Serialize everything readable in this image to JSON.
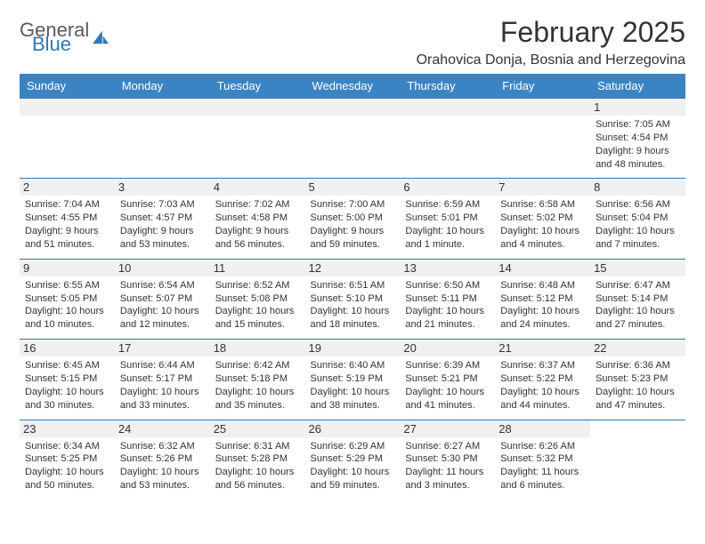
{
  "logo": {
    "text1": "General",
    "text2": "Blue"
  },
  "title": "February 2025",
  "location": "Orahovica Donja, Bosnia and Herzegovina",
  "colors": {
    "header_bg": "#3b84c4",
    "header_text": "#ffffff",
    "border": "#2f78b5",
    "daynum_bg": "#f0f0f0",
    "text": "#333333",
    "logo_gray": "#5a5a5a",
    "logo_blue": "#2f78b5",
    "page_bg": "#ffffff"
  },
  "fonts": {
    "title_size": 32,
    "location_size": 16,
    "dayname_size": 13,
    "daynum_size": 13,
    "body_size": 11
  },
  "dayNames": [
    "Sunday",
    "Monday",
    "Tuesday",
    "Wednesday",
    "Thursday",
    "Friday",
    "Saturday"
  ],
  "weeks": [
    [
      null,
      null,
      null,
      null,
      null,
      null,
      {
        "n": "1",
        "sr": "Sunrise: 7:05 AM",
        "ss": "Sunset: 4:54 PM",
        "d1": "Daylight: 9 hours",
        "d2": "and 48 minutes."
      }
    ],
    [
      {
        "n": "2",
        "sr": "Sunrise: 7:04 AM",
        "ss": "Sunset: 4:55 PM",
        "d1": "Daylight: 9 hours",
        "d2": "and 51 minutes."
      },
      {
        "n": "3",
        "sr": "Sunrise: 7:03 AM",
        "ss": "Sunset: 4:57 PM",
        "d1": "Daylight: 9 hours",
        "d2": "and 53 minutes."
      },
      {
        "n": "4",
        "sr": "Sunrise: 7:02 AM",
        "ss": "Sunset: 4:58 PM",
        "d1": "Daylight: 9 hours",
        "d2": "and 56 minutes."
      },
      {
        "n": "5",
        "sr": "Sunrise: 7:00 AM",
        "ss": "Sunset: 5:00 PM",
        "d1": "Daylight: 9 hours",
        "d2": "and 59 minutes."
      },
      {
        "n": "6",
        "sr": "Sunrise: 6:59 AM",
        "ss": "Sunset: 5:01 PM",
        "d1": "Daylight: 10 hours",
        "d2": "and 1 minute."
      },
      {
        "n": "7",
        "sr": "Sunrise: 6:58 AM",
        "ss": "Sunset: 5:02 PM",
        "d1": "Daylight: 10 hours",
        "d2": "and 4 minutes."
      },
      {
        "n": "8",
        "sr": "Sunrise: 6:56 AM",
        "ss": "Sunset: 5:04 PM",
        "d1": "Daylight: 10 hours",
        "d2": "and 7 minutes."
      }
    ],
    [
      {
        "n": "9",
        "sr": "Sunrise: 6:55 AM",
        "ss": "Sunset: 5:05 PM",
        "d1": "Daylight: 10 hours",
        "d2": "and 10 minutes."
      },
      {
        "n": "10",
        "sr": "Sunrise: 6:54 AM",
        "ss": "Sunset: 5:07 PM",
        "d1": "Daylight: 10 hours",
        "d2": "and 12 minutes."
      },
      {
        "n": "11",
        "sr": "Sunrise: 6:52 AM",
        "ss": "Sunset: 5:08 PM",
        "d1": "Daylight: 10 hours",
        "d2": "and 15 minutes."
      },
      {
        "n": "12",
        "sr": "Sunrise: 6:51 AM",
        "ss": "Sunset: 5:10 PM",
        "d1": "Daylight: 10 hours",
        "d2": "and 18 minutes."
      },
      {
        "n": "13",
        "sr": "Sunrise: 6:50 AM",
        "ss": "Sunset: 5:11 PM",
        "d1": "Daylight: 10 hours",
        "d2": "and 21 minutes."
      },
      {
        "n": "14",
        "sr": "Sunrise: 6:48 AM",
        "ss": "Sunset: 5:12 PM",
        "d1": "Daylight: 10 hours",
        "d2": "and 24 minutes."
      },
      {
        "n": "15",
        "sr": "Sunrise: 6:47 AM",
        "ss": "Sunset: 5:14 PM",
        "d1": "Daylight: 10 hours",
        "d2": "and 27 minutes."
      }
    ],
    [
      {
        "n": "16",
        "sr": "Sunrise: 6:45 AM",
        "ss": "Sunset: 5:15 PM",
        "d1": "Daylight: 10 hours",
        "d2": "and 30 minutes."
      },
      {
        "n": "17",
        "sr": "Sunrise: 6:44 AM",
        "ss": "Sunset: 5:17 PM",
        "d1": "Daylight: 10 hours",
        "d2": "and 33 minutes."
      },
      {
        "n": "18",
        "sr": "Sunrise: 6:42 AM",
        "ss": "Sunset: 5:18 PM",
        "d1": "Daylight: 10 hours",
        "d2": "and 35 minutes."
      },
      {
        "n": "19",
        "sr": "Sunrise: 6:40 AM",
        "ss": "Sunset: 5:19 PM",
        "d1": "Daylight: 10 hours",
        "d2": "and 38 minutes."
      },
      {
        "n": "20",
        "sr": "Sunrise: 6:39 AM",
        "ss": "Sunset: 5:21 PM",
        "d1": "Daylight: 10 hours",
        "d2": "and 41 minutes."
      },
      {
        "n": "21",
        "sr": "Sunrise: 6:37 AM",
        "ss": "Sunset: 5:22 PM",
        "d1": "Daylight: 10 hours",
        "d2": "and 44 minutes."
      },
      {
        "n": "22",
        "sr": "Sunrise: 6:36 AM",
        "ss": "Sunset: 5:23 PM",
        "d1": "Daylight: 10 hours",
        "d2": "and 47 minutes."
      }
    ],
    [
      {
        "n": "23",
        "sr": "Sunrise: 6:34 AM",
        "ss": "Sunset: 5:25 PM",
        "d1": "Daylight: 10 hours",
        "d2": "and 50 minutes."
      },
      {
        "n": "24",
        "sr": "Sunrise: 6:32 AM",
        "ss": "Sunset: 5:26 PM",
        "d1": "Daylight: 10 hours",
        "d2": "and 53 minutes."
      },
      {
        "n": "25",
        "sr": "Sunrise: 6:31 AM",
        "ss": "Sunset: 5:28 PM",
        "d1": "Daylight: 10 hours",
        "d2": "and 56 minutes."
      },
      {
        "n": "26",
        "sr": "Sunrise: 6:29 AM",
        "ss": "Sunset: 5:29 PM",
        "d1": "Daylight: 10 hours",
        "d2": "and 59 minutes."
      },
      {
        "n": "27",
        "sr": "Sunrise: 6:27 AM",
        "ss": "Sunset: 5:30 PM",
        "d1": "Daylight: 11 hours",
        "d2": "and 3 minutes."
      },
      {
        "n": "28",
        "sr": "Sunrise: 6:26 AM",
        "ss": "Sunset: 5:32 PM",
        "d1": "Daylight: 11 hours",
        "d2": "and 6 minutes."
      },
      null
    ]
  ]
}
